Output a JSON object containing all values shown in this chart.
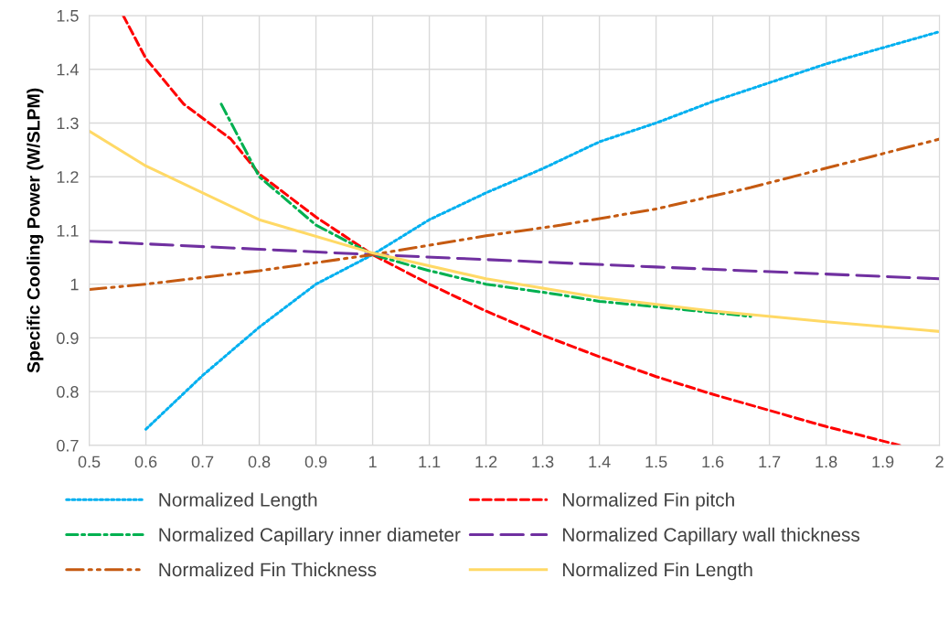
{
  "chart_data": {
    "type": "line",
    "ylabel": "Specific Cooling Power (W/SLPM)",
    "xlim": [
      0.5,
      2
    ],
    "xticks": [
      0.5,
      0.6,
      0.7,
      0.8,
      0.9,
      1,
      1.1,
      1.2,
      1.3,
      1.4,
      1.5,
      1.6,
      1.7,
      1.8,
      1.9,
      2
    ],
    "ylim": [
      0.7,
      1.5
    ],
    "yticks": [
      0.7,
      0.8,
      0.9,
      1,
      1.1,
      1.2,
      1.3,
      1.4,
      1.5
    ],
    "grid": true,
    "legend": "bottom",
    "marker": "none",
    "series": [
      {
        "name": "Normalized Length",
        "color": "#00b0f0",
        "line_style": "dotted",
        "x": [
          0.6,
          0.7,
          0.8,
          0.9,
          1.0,
          1.1,
          1.2,
          1.3,
          1.4,
          1.5,
          1.6,
          1.7,
          1.8,
          1.9,
          2.0
        ],
        "values": [
          0.73,
          0.83,
          0.92,
          1.0,
          1.055,
          1.12,
          1.17,
          1.215,
          1.265,
          1.3,
          1.34,
          1.375,
          1.41,
          1.44,
          1.47
        ]
      },
      {
        "name": "Normalized Fin pitch",
        "color": "#ff0000",
        "line_style": "dashed",
        "x": [
          0.56,
          0.6,
          0.667,
          0.75,
          0.8,
          0.9,
          1.0,
          1.1,
          1.2,
          1.3,
          1.4,
          1.5,
          1.6,
          1.7,
          1.8,
          1.93
        ],
        "values": [
          1.5,
          1.42,
          1.335,
          1.27,
          1.205,
          1.125,
          1.055,
          1.0,
          0.95,
          0.905,
          0.865,
          0.828,
          0.795,
          0.765,
          0.735,
          0.7
        ]
      },
      {
        "name": "Normalized Capillary inner diameter",
        "color": "#00b050",
        "line_style": "dashdot",
        "x": [
          0.733,
          0.8,
          0.9,
          1.0,
          1.1,
          1.2,
          1.333,
          1.4,
          1.5,
          1.667
        ],
        "values": [
          1.335,
          1.2,
          1.11,
          1.055,
          1.025,
          1.0,
          0.98,
          0.968,
          0.958,
          0.94
        ]
      },
      {
        "name": "Normalized Capillary wall thickness",
        "color": "#7030a0",
        "line_style": "longdash",
        "x": [
          0.5,
          0.8,
          1.0,
          1.5,
          2.0
        ],
        "values": [
          1.08,
          1.065,
          1.055,
          1.032,
          1.01
        ]
      },
      {
        "name": "Normalized Fin Thickness",
        "color": "#c55a11",
        "line_style": "dashdotdot",
        "x": [
          0.5,
          0.6,
          0.8,
          1.0,
          1.2,
          1.333,
          1.5,
          1.667,
          2.0
        ],
        "values": [
          0.99,
          1.0,
          1.025,
          1.055,
          1.09,
          1.11,
          1.14,
          1.18,
          1.27
        ]
      },
      {
        "name": "Normalized Fin Length",
        "color": "#ffd966",
        "line_style": "solid",
        "x": [
          0.5,
          0.6,
          0.8,
          1.0,
          1.2,
          1.4,
          1.6,
          1.8,
          2.0
        ],
        "values": [
          1.285,
          1.22,
          1.12,
          1.058,
          1.01,
          0.975,
          0.95,
          0.93,
          0.912
        ]
      }
    ]
  }
}
